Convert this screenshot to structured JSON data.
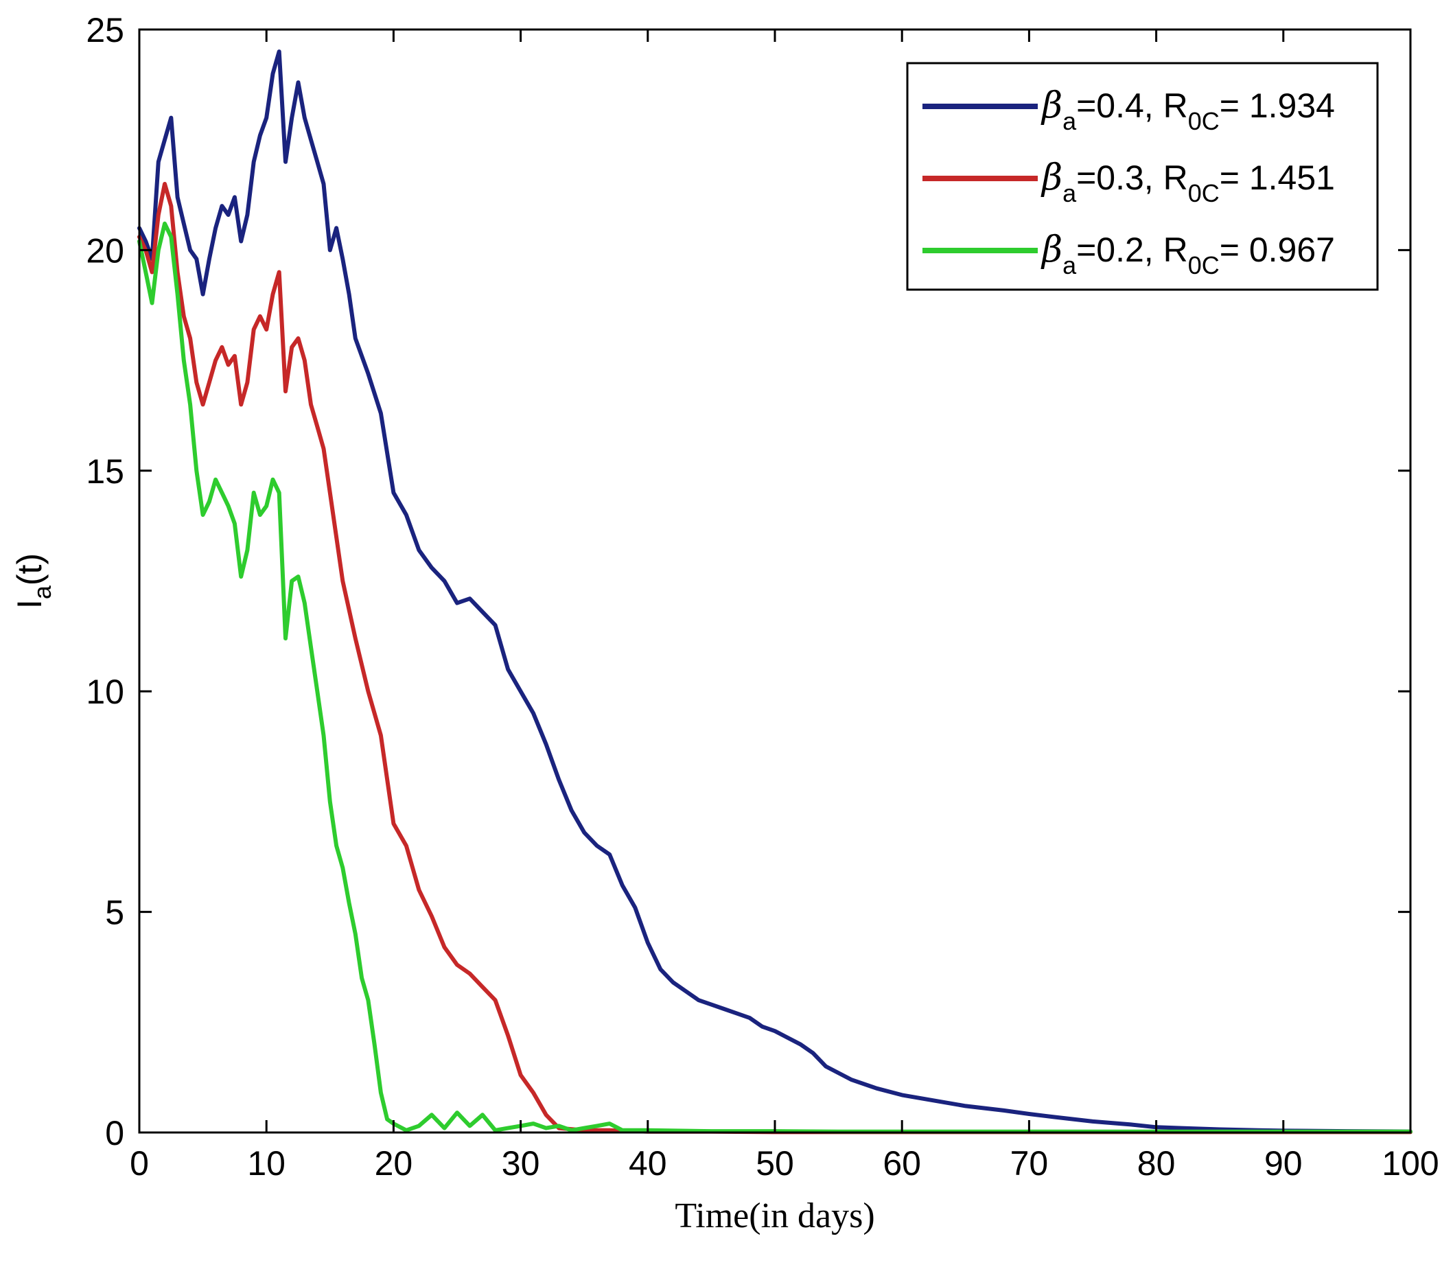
{
  "chart_data": {
    "type": "line",
    "xlabel": "Time(in days)",
    "ylabel": {
      "main": "I",
      "sub": "a",
      "rest": "(t)"
    },
    "xlim": [
      0,
      100
    ],
    "ylim": [
      0,
      25
    ],
    "xticks": [
      0,
      10,
      20,
      30,
      40,
      50,
      60,
      70,
      80,
      90,
      100
    ],
    "yticks": [
      0,
      5,
      10,
      15,
      20,
      25
    ],
    "grid": false,
    "legend_position": "top-right",
    "series": [
      {
        "label": {
          "sym": "β",
          "sub1": "a",
          "mid": "=0.4, R",
          "sub2": "0C",
          "rest": "= 1.934"
        },
        "color": "#1a237e",
        "x": [
          0,
          0.5,
          1,
          1.5,
          2,
          2.5,
          3,
          3.5,
          4,
          4.5,
          5,
          5.5,
          6,
          6.5,
          7,
          7.5,
          8,
          8.5,
          9,
          9.5,
          10,
          10.5,
          11,
          11.5,
          12,
          12.5,
          13,
          13.5,
          14,
          14.5,
          15,
          15.5,
          16,
          16.5,
          17,
          18,
          19,
          20,
          21,
          22,
          23,
          24,
          25,
          26,
          27,
          28,
          29,
          30,
          31,
          32,
          33,
          34,
          35,
          36,
          37,
          38,
          39,
          40,
          41,
          42,
          43,
          44,
          45,
          46,
          47,
          48,
          49,
          50,
          52,
          53,
          54,
          56,
          58,
          60,
          62,
          65,
          68,
          70,
          72,
          75,
          78,
          80,
          82,
          85,
          88,
          90,
          95,
          100
        ],
        "y": [
          20.5,
          20.2,
          19.8,
          22.0,
          22.5,
          23.0,
          21.2,
          20.6,
          20.0,
          19.8,
          19.0,
          19.8,
          20.5,
          21.0,
          20.8,
          21.2,
          20.2,
          20.8,
          22.0,
          22.6,
          23.0,
          24.0,
          24.5,
          22.0,
          23.0,
          23.8,
          23.0,
          22.5,
          22.0,
          21.5,
          20.0,
          20.5,
          19.8,
          19.0,
          18.0,
          17.2,
          16.3,
          14.5,
          14.0,
          13.2,
          12.8,
          12.5,
          12.0,
          12.1,
          11.8,
          11.5,
          10.5,
          10.0,
          9.5,
          8.8,
          8.0,
          7.3,
          6.8,
          6.5,
          6.3,
          5.6,
          5.1,
          4.3,
          3.7,
          3.4,
          3.2,
          3.0,
          2.9,
          2.8,
          2.7,
          2.6,
          2.4,
          2.3,
          2.0,
          1.8,
          1.5,
          1.2,
          1.0,
          0.85,
          0.75,
          0.6,
          0.5,
          0.42,
          0.35,
          0.25,
          0.18,
          0.12,
          0.1,
          0.07,
          0.05,
          0.04,
          0.03,
          0.02
        ]
      },
      {
        "label": {
          "sym": "β",
          "sub1": "a",
          "mid": "=0.3, R",
          "sub2": "0C",
          "rest": "=  1.451"
        },
        "color": "#c62828",
        "x": [
          0,
          0.5,
          1,
          1.5,
          2,
          2.5,
          3,
          3.5,
          4,
          4.5,
          5,
          5.5,
          6,
          6.5,
          7,
          7.5,
          8,
          8.5,
          9,
          9.5,
          10,
          10.5,
          11,
          11.5,
          12,
          12.5,
          13,
          13.5,
          14,
          14.5,
          15,
          16,
          17,
          18,
          19,
          20,
          21,
          22,
          23,
          24,
          25,
          26,
          27,
          28,
          29,
          30,
          31,
          32,
          33,
          35,
          37,
          40,
          45,
          50,
          60,
          70,
          80,
          90,
          100
        ],
        "y": [
          20.3,
          20.0,
          19.5,
          20.8,
          21.5,
          21.0,
          19.5,
          18.5,
          18.0,
          17.0,
          16.5,
          17.0,
          17.5,
          17.8,
          17.4,
          17.6,
          16.5,
          17.0,
          18.2,
          18.5,
          18.2,
          19.0,
          19.5,
          16.8,
          17.8,
          18.0,
          17.5,
          16.5,
          16.0,
          15.5,
          14.5,
          12.5,
          11.2,
          10.0,
          9.0,
          7.0,
          6.5,
          5.5,
          4.9,
          4.2,
          3.8,
          3.6,
          3.3,
          3.0,
          2.2,
          1.3,
          0.9,
          0.4,
          0.1,
          0.05,
          0.05,
          0.02,
          0.02,
          0.01,
          0.01,
          0.01,
          0.01,
          0.01,
          0.01
        ]
      },
      {
        "label": {
          "sym": "β",
          "sub1": "a",
          "mid": "=0.2, R",
          "sub2": "0C",
          "rest": "= 0.967"
        },
        "color": "#2ecc2e",
        "x": [
          0,
          0.5,
          1,
          1.5,
          2,
          2.5,
          3,
          3.5,
          4,
          4.5,
          5,
          5.5,
          6,
          6.5,
          7,
          7.5,
          8,
          8.5,
          9,
          9.5,
          10,
          10.5,
          11,
          11.5,
          12,
          12.5,
          13,
          13.5,
          14,
          14.5,
          15,
          15.5,
          16,
          16.5,
          17,
          17.5,
          18,
          18.5,
          19,
          19.5,
          20,
          21,
          22,
          23,
          24,
          25,
          26,
          27,
          28,
          29,
          30,
          31,
          32,
          33,
          34,
          35,
          36,
          37,
          38,
          40,
          45,
          50,
          55,
          60,
          70,
          80,
          90,
          100
        ],
        "y": [
          20.2,
          19.5,
          18.8,
          20.0,
          20.6,
          20.3,
          19.0,
          17.5,
          16.5,
          15.0,
          14.0,
          14.3,
          14.8,
          14.5,
          14.2,
          13.8,
          12.6,
          13.2,
          14.5,
          14.0,
          14.2,
          14.8,
          14.5,
          11.2,
          12.5,
          12.6,
          12.0,
          11.0,
          10.0,
          9.0,
          7.5,
          6.5,
          6.0,
          5.2,
          4.5,
          3.5,
          3.0,
          2.0,
          0.9,
          0.3,
          0.2,
          0.05,
          0.15,
          0.4,
          0.1,
          0.45,
          0.15,
          0.4,
          0.05,
          0.1,
          0.15,
          0.2,
          0.1,
          0.15,
          0.05,
          0.1,
          0.15,
          0.2,
          0.05,
          0.05,
          0.03,
          0.03,
          0.02,
          0.02,
          0.02,
          0.02,
          0.02,
          0.02
        ]
      }
    ]
  }
}
